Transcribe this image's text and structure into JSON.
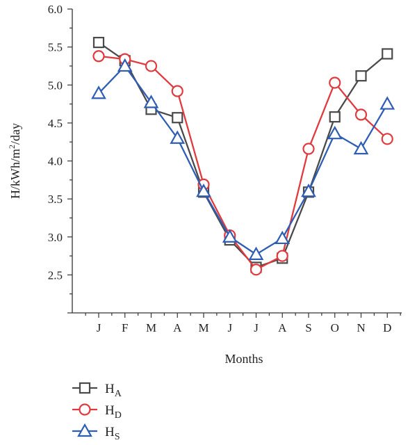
{
  "chart_data": {
    "type": "line",
    "title": "",
    "xlabel": "Months",
    "ylabel": "H/kWh/m2/day",
    "ylabel_parts": {
      "base": "H/kWh/m",
      "sup": "2",
      "tail": "/day"
    },
    "categories": [
      "J",
      "F",
      "M",
      "A",
      "M",
      "J",
      "J",
      "A",
      "S",
      "O",
      "N",
      "D"
    ],
    "ylim": [
      2.0,
      6.0
    ],
    "yticks": [
      "2.5",
      "3.0",
      "3.5",
      "4.0",
      "4.5",
      "5.0",
      "5.5",
      "6.0"
    ],
    "grid": false,
    "legend_position": "bottom-left",
    "series": [
      {
        "name": "HA",
        "label_main": "H",
        "label_sub": "A",
        "marker": "square",
        "color": "#4a4a4a",
        "values": [
          5.56,
          5.32,
          4.68,
          4.57,
          3.59,
          2.96,
          2.6,
          2.72,
          3.59,
          4.58,
          5.12,
          5.41
        ]
      },
      {
        "name": "HD",
        "label_main": "H",
        "label_sub": "D",
        "marker": "circle",
        "color": "#e03a3e",
        "values": [
          5.38,
          5.34,
          5.25,
          4.92,
          3.69,
          3.02,
          2.57,
          2.75,
          4.16,
          5.03,
          4.61,
          4.29
        ]
      },
      {
        "name": "HS",
        "label_main": "H",
        "label_sub": "S",
        "marker": "triangle",
        "color": "#2f5db3",
        "values": [
          4.89,
          5.25,
          4.77,
          4.3,
          3.6,
          3.0,
          2.77,
          2.98,
          3.6,
          4.36,
          4.16,
          4.75
        ]
      }
    ]
  }
}
